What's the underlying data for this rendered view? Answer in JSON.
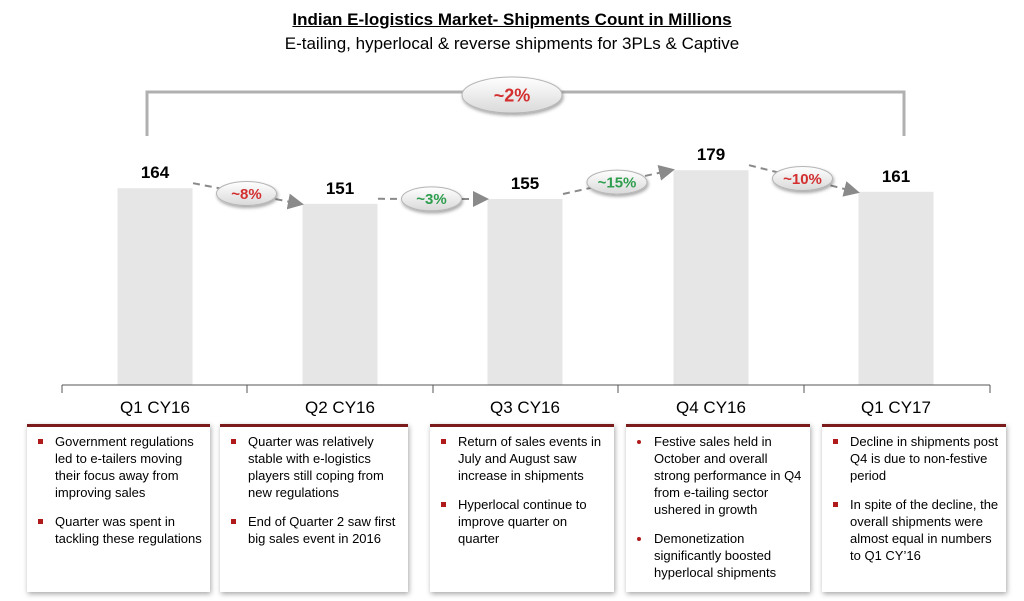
{
  "chart_data": {
    "type": "bar",
    "title": "Indian E-logistics Market- Shipments Count in Millions",
    "subtitle": "E-tailing, hyperlocal & reverse shipments for 3PLs & Captive",
    "categories": [
      "Q1 CY16",
      "Q2 CY16",
      "Q3 CY16",
      "Q4 CY16",
      "Q1 CY17"
    ],
    "values": [
      164,
      151,
      155,
      179,
      161
    ],
    "value_labels": [
      "164",
      "151",
      "155",
      "179",
      "161"
    ],
    "changes": [
      {
        "from": 0,
        "to": 1,
        "label": "~8%",
        "direction": "down"
      },
      {
        "from": 1,
        "to": 2,
        "label": "~3%",
        "direction": "up"
      },
      {
        "from": 2,
        "to": 3,
        "label": "~15%",
        "direction": "up"
      },
      {
        "from": 3,
        "to": 4,
        "label": "~10%",
        "direction": "down"
      }
    ],
    "overall_change": {
      "from": 0,
      "to": 4,
      "label": "~2%",
      "direction": "down"
    },
    "ylim": [
      0,
      200
    ],
    "grid": false,
    "colors": {
      "bar": "#e6e6e6",
      "down": "#d32f2f",
      "up": "#2e9e4e",
      "box_accent": "#7a1a1a"
    }
  },
  "notes": [
    {
      "style": "square",
      "items": [
        "Government regulations led to e-tailers moving their focus away from improving sales",
        "Quarter was spent  in tackling these regulations"
      ]
    },
    {
      "style": "square",
      "items": [
        "Quarter was relatively stable with e-logistics players still coping from new regulations",
        "End of Quarter 2 saw first big sales event in 2016"
      ]
    },
    {
      "style": "square",
      "items": [
        "Return of sales events in July and August saw increase in shipments",
        "Hyperlocal continue to improve quarter on quarter"
      ]
    },
    {
      "style": "dot",
      "items": [
        "Festive sales held in October and overall strong performance in Q4 from e-tailing sector ushered in growth",
        "Demonetization significantly boosted hyperlocal shipments"
      ]
    },
    {
      "style": "square",
      "items": [
        "Decline in shipments post Q4 is due to non-festive period",
        "In spite of the decline, the overall shipments were almost equal in numbers to Q1 CY’16"
      ]
    }
  ]
}
